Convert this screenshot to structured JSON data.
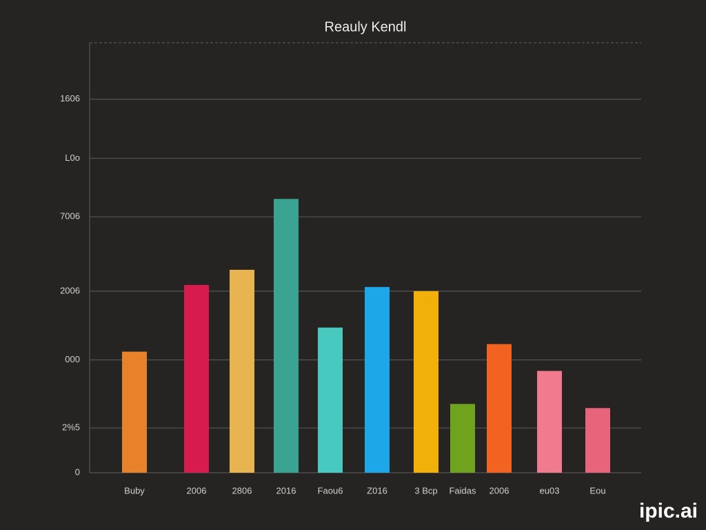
{
  "chart_data": {
    "type": "bar",
    "title": "Reauly Kendl",
    "categories": [
      "Buby",
      "2006",
      "2806",
      "2016",
      "Faou6",
      "Z016",
      "3 Bcp",
      "Faidas",
      "2006",
      "eu03",
      "Eou"
    ],
    "values": [
      176,
      273,
      295,
      398,
      211,
      270,
      264,
      100,
      187,
      148,
      94
    ],
    "colors": [
      "#e8822a",
      "#d81b4f",
      "#e8b44f",
      "#3aa392",
      "#48c9c0",
      "#1ea7e8",
      "#f2b10a",
      "#6fa31e",
      "#f26322",
      "#f07a8e",
      "#e8647a"
    ],
    "ylim": [
      0,
      625
    ],
    "yticks": [
      0,
      {
        "value": 65,
        "label": "2%5"
      },
      {
        "value": 164,
        "label": "000"
      },
      {
        "value": 264,
        "label": "2006"
      },
      {
        "value": 372,
        "label": "7006"
      },
      {
        "value": 457,
        "label": "L0o"
      },
      {
        "value": 543,
        "label": "1606"
      }
    ],
    "grid": true
  },
  "watermark": "ipic.ai"
}
